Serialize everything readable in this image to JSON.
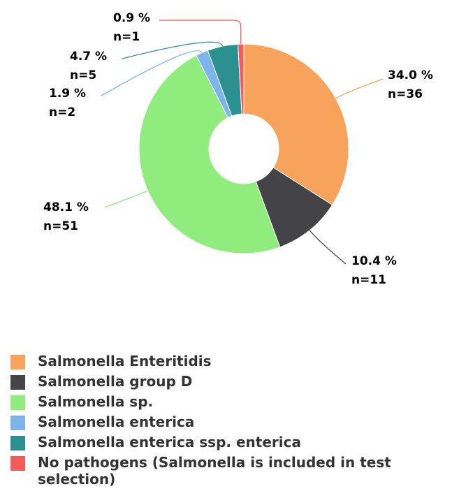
{
  "chart_data": {
    "type": "donut",
    "categories": [
      "Salmonella Enteritidis",
      "Salmonella group D",
      "Salmonella sp.",
      "Salmonella enterica",
      "Salmonella enterica ssp. enterica",
      "No pathogens (Salmonella is included in test selection)"
    ],
    "values": [
      34.0,
      10.4,
      48.1,
      1.9,
      4.7,
      0.9
    ],
    "value_labels": [
      "34.0 %",
      "10.4 %",
      "48.1 %",
      "1.9 %",
      "4.7 %",
      "0.9 %"
    ],
    "count_labels": [
      "n=36",
      "n=11",
      "n=51",
      "n=2",
      "n=5",
      "n=1"
    ],
    "colors": [
      "#f7a35c",
      "#434348",
      "#90ed7d",
      "#7cb5ec",
      "#2b908f",
      "#f45b5b"
    ],
    "legend": "bottom"
  }
}
